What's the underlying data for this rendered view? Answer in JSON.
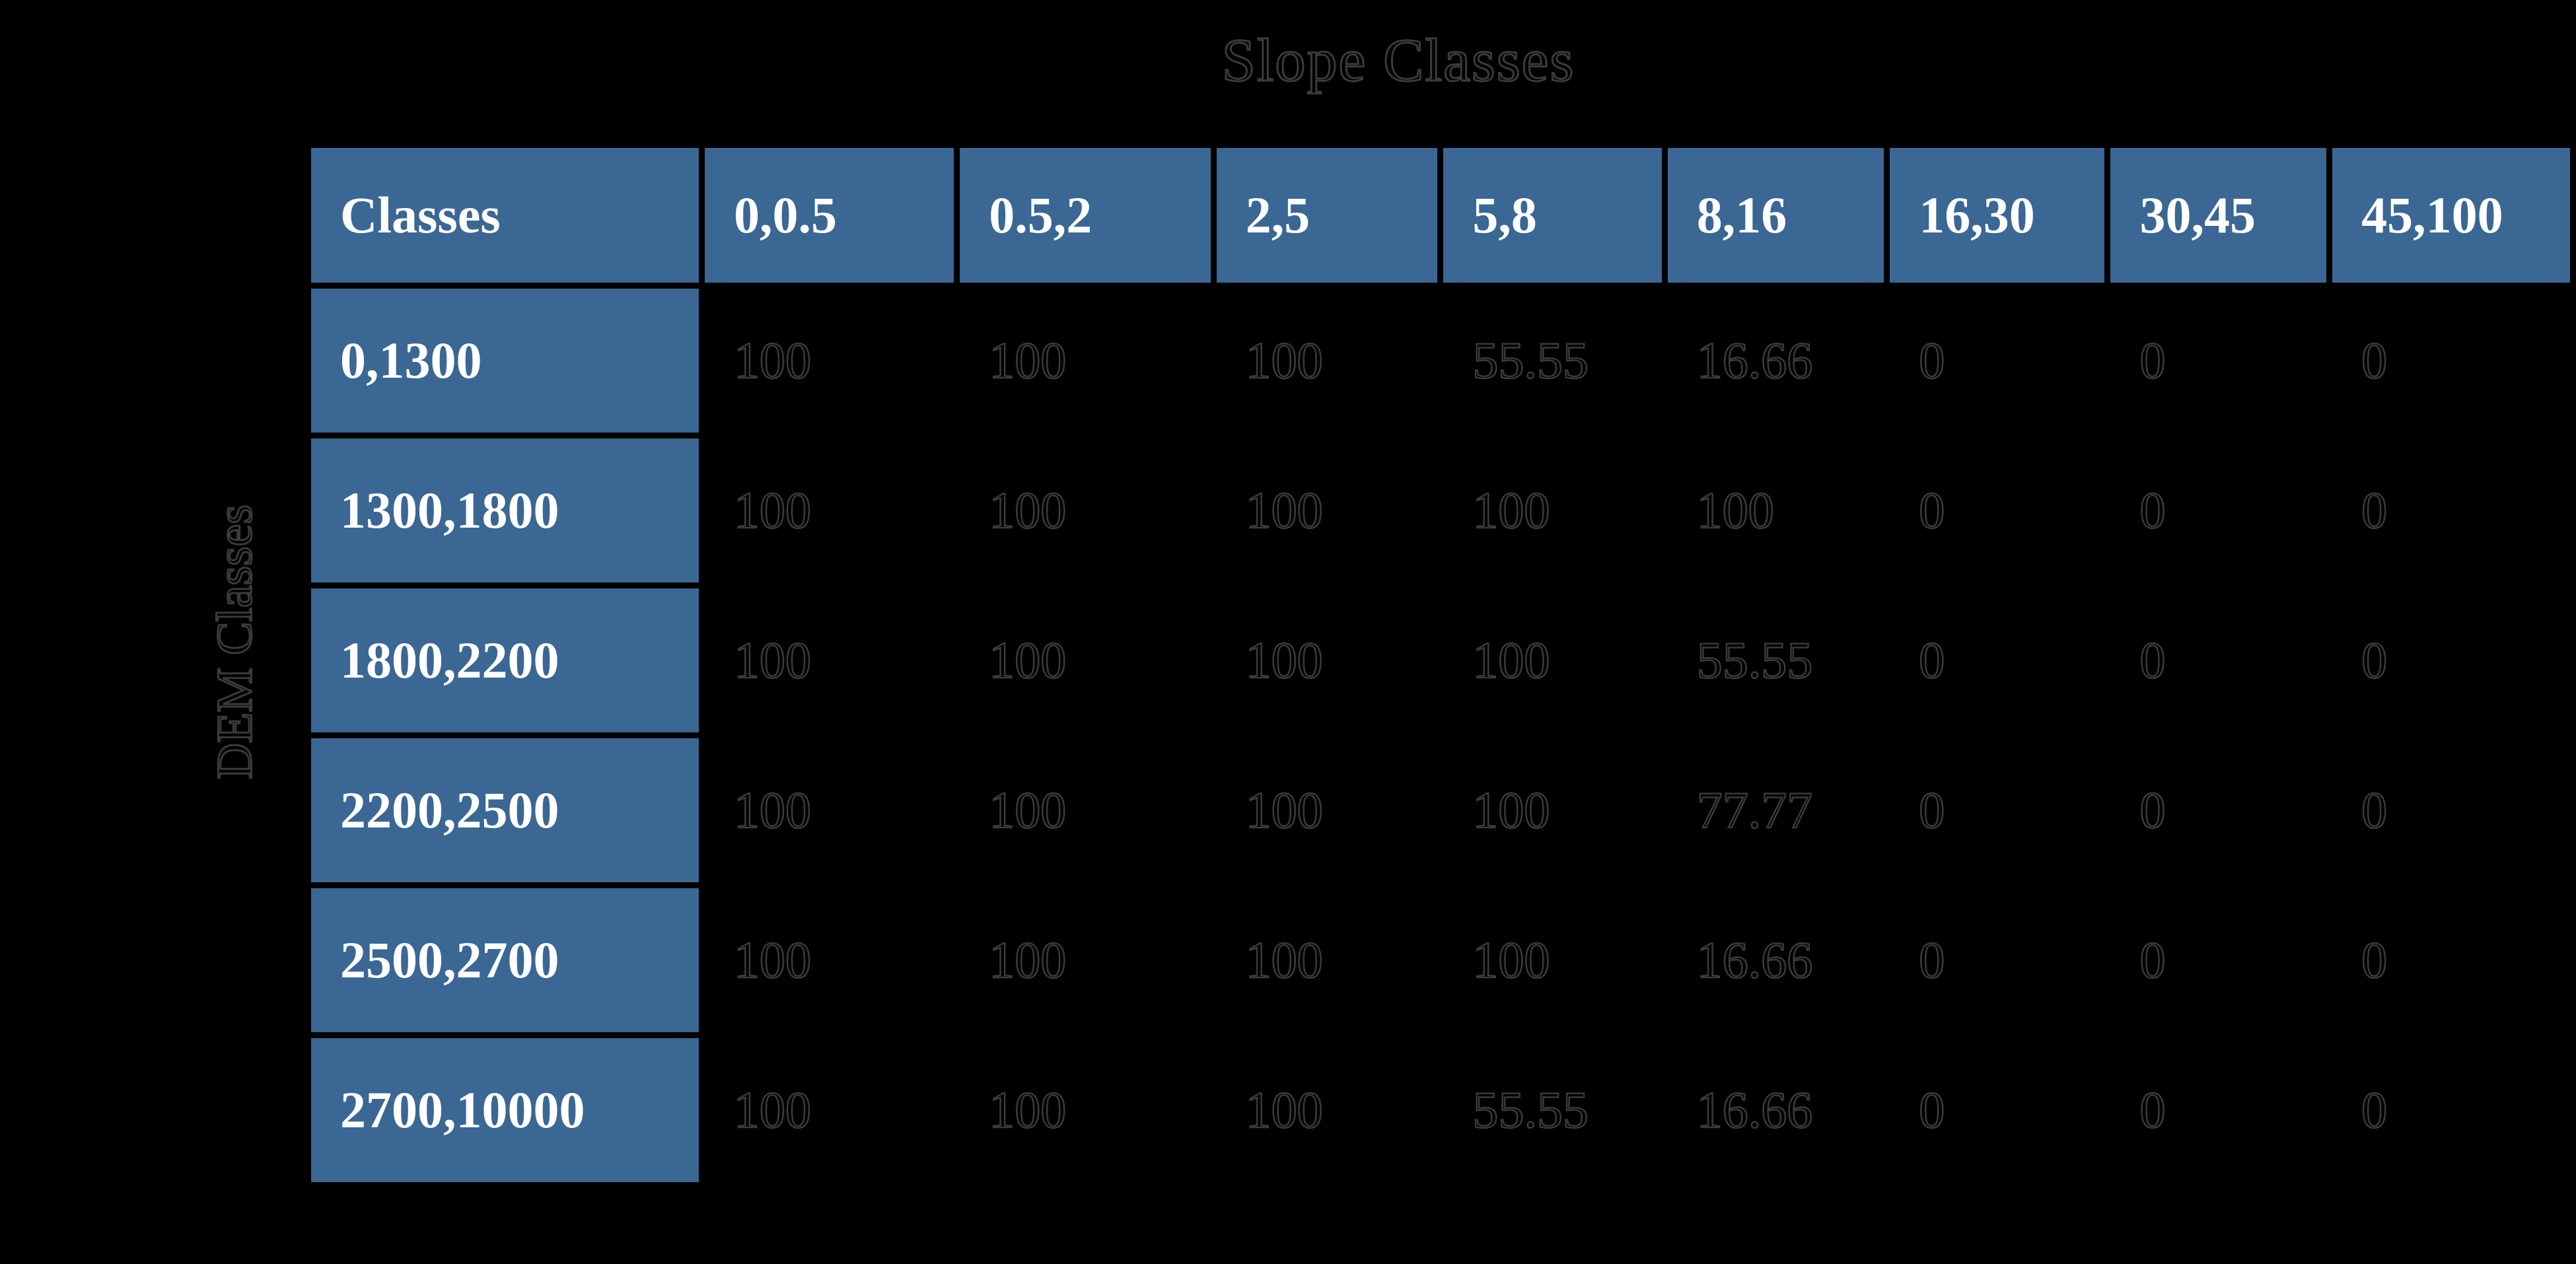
{
  "title": "Slope Classes",
  "row_axis_label": "DEM Classes",
  "colors": {
    "background": "#000000",
    "header_cell_bg": "#3A6794",
    "header_text": "#ffffff",
    "hidden_text_fill": "#000000",
    "hidden_text_outline": "#3a3a3a"
  },
  "chart_data": {
    "type": "table",
    "title": "Slope Classes",
    "row_axis_label": "DEM Classes",
    "columns": [
      "Classes",
      "0,0.5",
      "0.5,2",
      "2,5",
      "5,8",
      "8,16",
      "16,30",
      "30,45",
      "45,100"
    ],
    "rows": [
      [
        "0,1300",
        "100",
        "100",
        "100",
        "55.55",
        "16.66",
        "0",
        "0",
        "0"
      ],
      [
        "1300,1800",
        "100",
        "100",
        "100",
        "100",
        "100",
        "0",
        "0",
        "0"
      ],
      [
        "1800,2200",
        "100",
        "100",
        "100",
        "100",
        "55.55",
        "0",
        "0",
        "0"
      ],
      [
        "2200,2500",
        "100",
        "100",
        "100",
        "100",
        "77.77",
        "0",
        "0",
        "0"
      ],
      [
        "2500,2700",
        "100",
        "100",
        "100",
        "100",
        "16.66",
        "0",
        "0",
        "0"
      ],
      [
        "2700,10000",
        "100",
        "100",
        "100",
        "55.55",
        "16.66",
        "0",
        "0",
        "0"
      ]
    ],
    "layout": {
      "grid": "off",
      "legend": "none",
      "values_are": "percent of class area"
    }
  }
}
